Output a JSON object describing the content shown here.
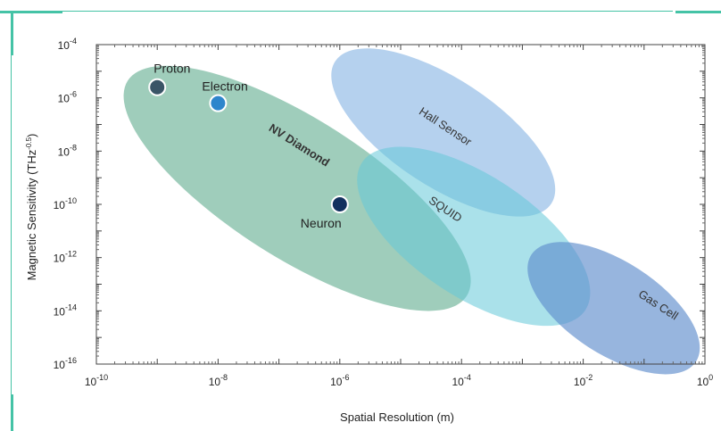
{
  "frame": {
    "accent_color": "#45c3a6"
  },
  "chart_data": {
    "type": "scatter",
    "xlabel": "Spatial Resolution (m)",
    "ylabel": "Magnetic Sensitivity (THz",
    "ylabel_sup": "-0.5",
    "ylabel_close": ")",
    "x_scale": "log",
    "y_scale": "log",
    "xlim_exp": [
      -10,
      0
    ],
    "ylim_exp": [
      -16,
      -4
    ],
    "grid": false,
    "x_ticks": [
      {
        "base": "10",
        "exp": "-10",
        "value": -10
      },
      {
        "base": "10",
        "exp": "-8",
        "value": -8
      },
      {
        "base": "10",
        "exp": "-6",
        "value": -6
      },
      {
        "base": "10",
        "exp": "-4",
        "value": -4
      },
      {
        "base": "10",
        "exp": "-2",
        "value": -2
      },
      {
        "base": "10",
        "exp": "0",
        "value": 0
      }
    ],
    "y_ticks": [
      {
        "base": "10",
        "exp": "-4",
        "value": -4
      },
      {
        "base": "10",
        "exp": "-6",
        "value": -6
      },
      {
        "base": "10",
        "exp": "-8",
        "value": -8
      },
      {
        "base": "10",
        "exp": "-10",
        "value": -10
      },
      {
        "base": "10",
        "exp": "-12",
        "value": -12
      },
      {
        "base": "10",
        "exp": "-14",
        "value": -14
      },
      {
        "base": "10",
        "exp": "-16",
        "value": -16
      }
    ],
    "regions": [
      {
        "name": "NV Diamond",
        "bold": true,
        "color": "#5fab8d",
        "opacity": 0.6,
        "center_log": [
          -6.7,
          -9.4
        ],
        "tilt_deg": 32.4,
        "label_log": [
          -6.7,
          -7.9
        ]
      },
      {
        "name": "Hall Sensor",
        "bold": false,
        "color": "#8db9e5",
        "opacity": 0.65,
        "center_log": [
          -4.3,
          -7.3
        ],
        "tilt_deg": 33.4,
        "label_log": [
          -4.3,
          -7.2
        ]
      },
      {
        "name": "SQUID",
        "bold": false,
        "color": "#64c8d8",
        "opacity": 0.55,
        "center_log": [
          -3.8,
          -11.2
        ],
        "tilt_deg": 33.5,
        "label_log": [
          -4.3,
          -10.3
        ]
      },
      {
        "name": "Gas Cell",
        "bold": false,
        "color": "#5f8dcc",
        "opacity": 0.65,
        "center_log": [
          -1.5,
          -13.9
        ],
        "tilt_deg": 33.0,
        "label_log": [
          -0.8,
          -13.9
        ]
      }
    ],
    "points": [
      {
        "name": "Proton",
        "x_log": -9.0,
        "y_log": -5.6,
        "color": "#3a5567"
      },
      {
        "name": "Electron",
        "x_log": -8.0,
        "y_log": -6.2,
        "color": "#2e86cc"
      },
      {
        "name": "Neuron",
        "x_log": -6.0,
        "y_log": -10.0,
        "color": "#12305e"
      }
    ]
  }
}
